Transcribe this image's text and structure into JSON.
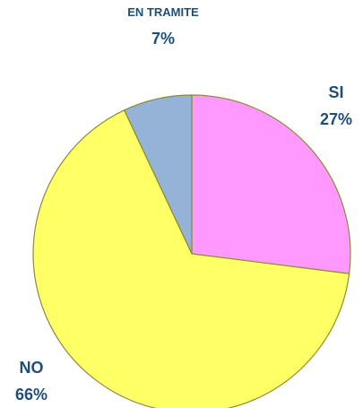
{
  "chart_data": {
    "type": "pie",
    "categories": [
      "SI",
      "NO",
      "EN TRAMITE"
    ],
    "values": [
      27,
      66,
      7
    ],
    "value_labels": [
      "27%",
      "66%",
      "7%"
    ],
    "colors": [
      "#ff99ff",
      "#ffff66",
      "#95b3d7"
    ]
  }
}
